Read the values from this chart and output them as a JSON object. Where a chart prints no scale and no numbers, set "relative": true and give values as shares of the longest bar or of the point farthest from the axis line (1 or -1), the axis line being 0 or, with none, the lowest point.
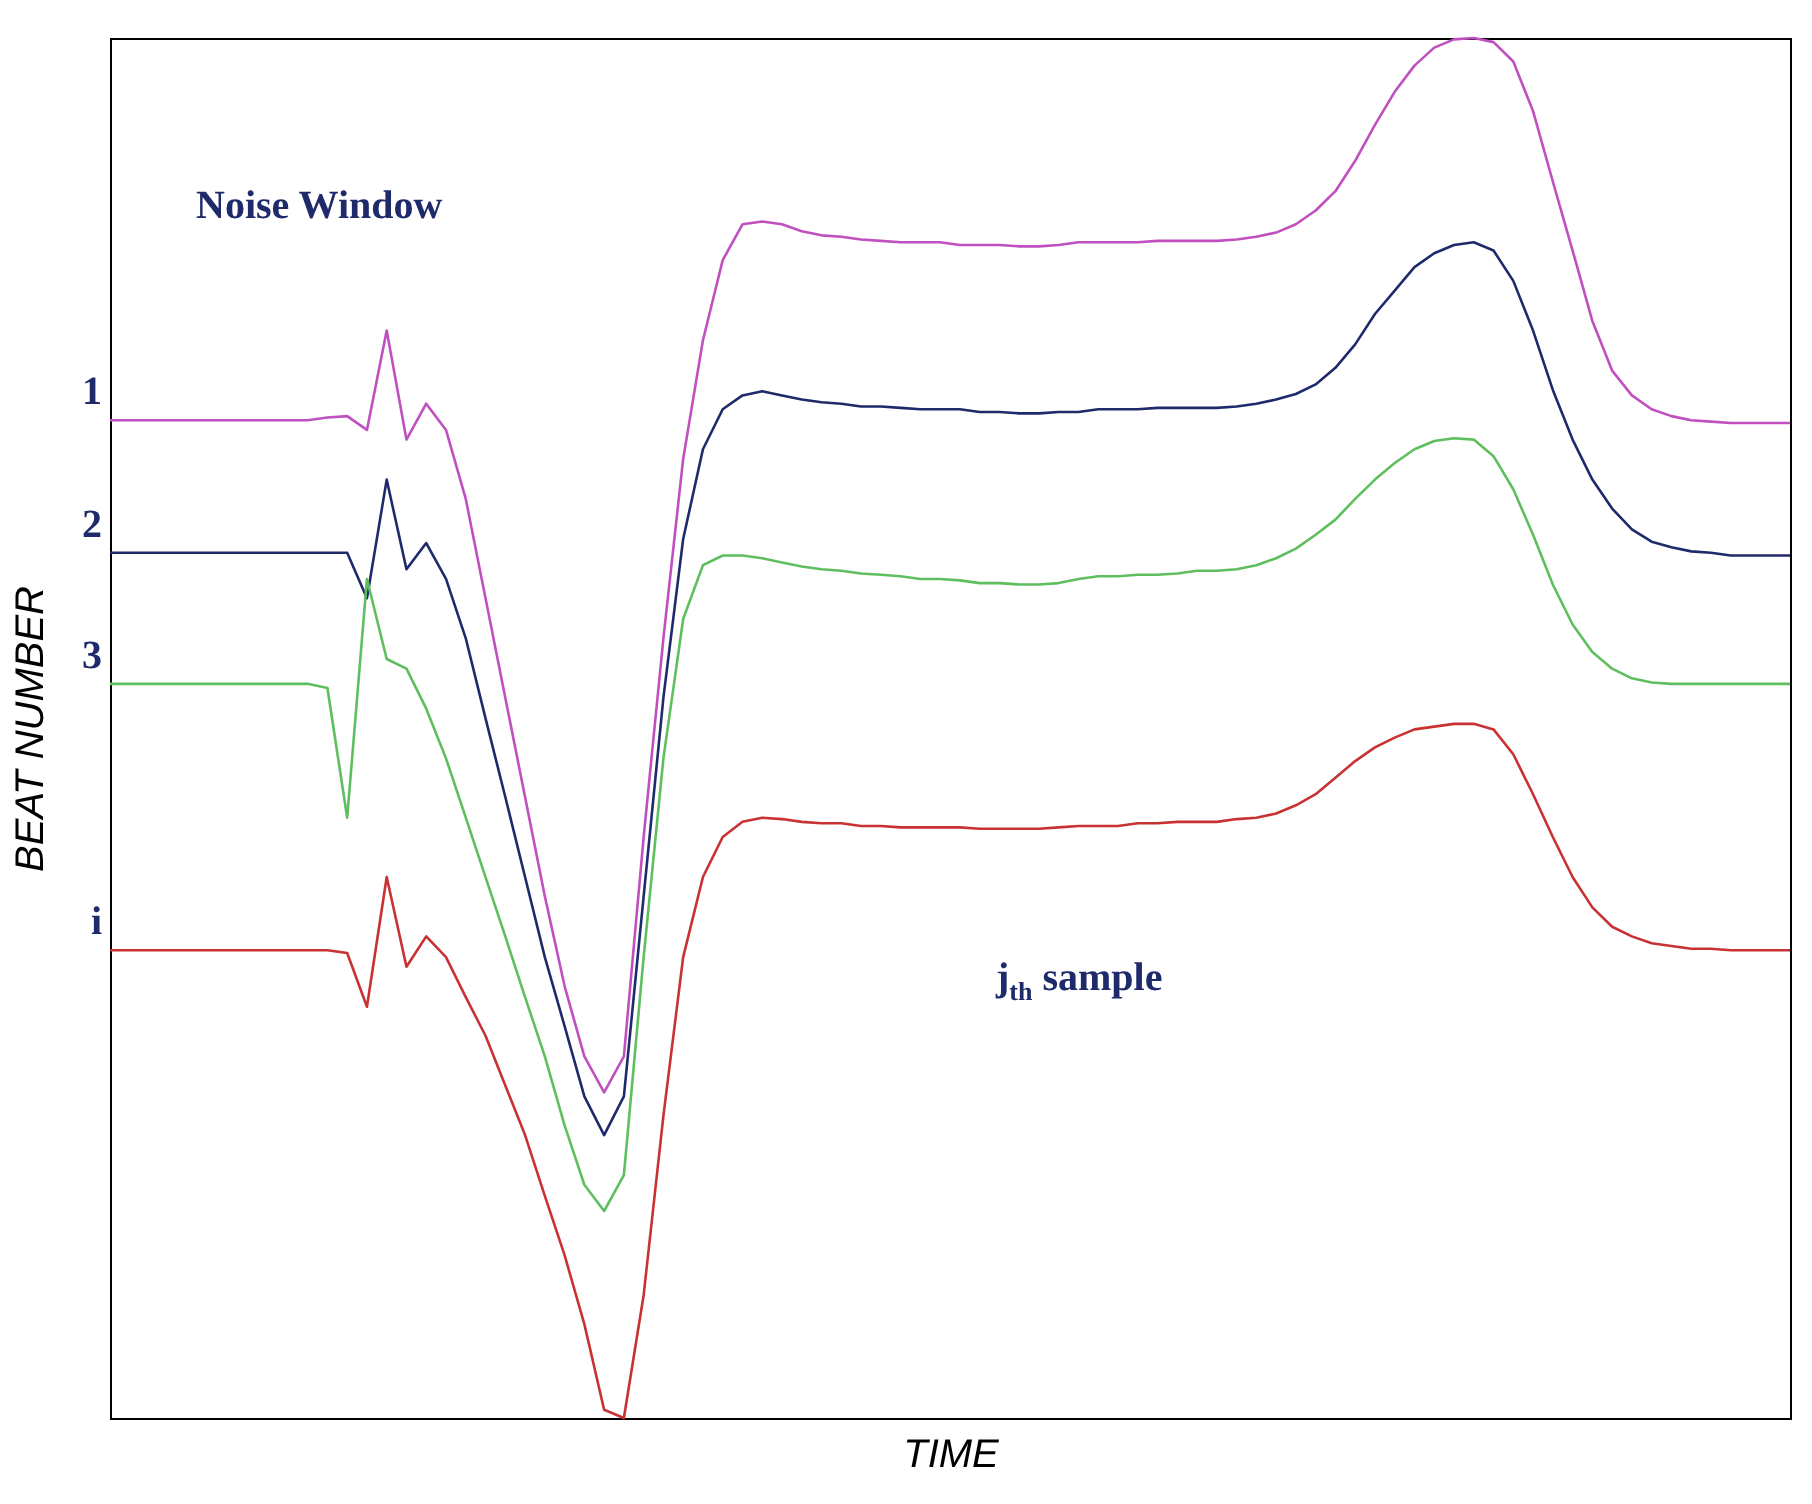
{
  "chart_data": {
    "type": "line",
    "relative": true,
    "xlabel": "TIME",
    "ylabel": "BEAT NUMBER",
    "legend": false,
    "annotations": [
      "Noise Window",
      "j$_{th}$ sample"
    ],
    "categories": [
      null,
      null,
      null,
      null,
      null,
      null,
      null,
      null,
      null,
      null,
      null,
      null,
      null,
      null,
      null,
      null,
      null,
      null,
      null,
      null,
      null,
      null,
      null,
      null,
      null,
      null,
      null,
      null,
      null,
      null,
      null,
      null,
      null,
      null,
      null,
      null,
      null,
      null,
      null,
      null,
      null,
      null,
      null,
      null,
      null,
      null,
      null,
      null,
      null,
      null,
      null,
      null,
      null,
      null,
      null,
      null,
      null,
      null,
      null,
      null,
      null,
      null,
      null,
      null,
      null,
      null,
      null,
      null,
      null,
      null,
      null,
      null,
      null,
      null,
      null,
      null,
      null,
      null,
      null,
      null,
      null,
      null,
      null,
      null,
      null,
      null
    ],
    "series": [
      {
        "name": "1",
        "color": "#c050c0",
        "values": [
          0.723,
          0.723,
          0.723,
          0.723,
          0.723,
          0.723,
          0.723,
          0.723,
          0.723,
          0.723,
          0.723,
          0.725,
          0.726,
          0.716,
          0.788,
          0.709,
          0.735,
          0.716,
          0.666,
          0.594,
          0.522,
          0.45,
          0.378,
          0.313,
          0.262,
          0.236,
          0.262,
          0.421,
          0.565,
          0.695,
          0.781,
          0.839,
          0.865,
          0.867,
          0.865,
          0.86,
          0.857,
          0.856,
          0.854,
          0.853,
          0.852,
          0.852,
          0.852,
          0.85,
          0.85,
          0.85,
          0.849,
          0.849,
          0.85,
          0.852,
          0.852,
          0.852,
          0.852,
          0.853,
          0.853,
          0.853,
          0.853,
          0.854,
          0.856,
          0.859,
          0.865,
          0.875,
          0.889,
          0.911,
          0.937,
          0.961,
          0.98,
          0.993,
          0.999,
          1.0,
          0.997,
          0.983,
          0.947,
          0.896,
          0.846,
          0.795,
          0.759,
          0.741,
          0.731,
          0.726,
          0.723,
          0.722,
          0.721,
          0.721,
          0.721,
          0.721
        ]
      },
      {
        "name": "2",
        "color": "#1f2a6b",
        "values": [
          0.627,
          0.627,
          0.627,
          0.627,
          0.627,
          0.627,
          0.627,
          0.627,
          0.627,
          0.627,
          0.627,
          0.627,
          0.627,
          0.594,
          0.68,
          0.615,
          0.634,
          0.608,
          0.565,
          0.507,
          0.45,
          0.392,
          0.334,
          0.284,
          0.233,
          0.205,
          0.233,
          0.378,
          0.522,
          0.637,
          0.702,
          0.731,
          0.741,
          0.744,
          0.741,
          0.738,
          0.736,
          0.735,
          0.733,
          0.733,
          0.732,
          0.731,
          0.731,
          0.731,
          0.729,
          0.729,
          0.728,
          0.728,
          0.729,
          0.729,
          0.731,
          0.731,
          0.731,
          0.732,
          0.732,
          0.732,
          0.732,
          0.733,
          0.735,
          0.738,
          0.742,
          0.749,
          0.761,
          0.778,
          0.8,
          0.817,
          0.834,
          0.844,
          0.85,
          0.852,
          0.846,
          0.824,
          0.788,
          0.745,
          0.709,
          0.68,
          0.659,
          0.644,
          0.635,
          0.631,
          0.628,
          0.627,
          0.625,
          0.625,
          0.625,
          0.625
        ]
      },
      {
        "name": "3",
        "color": "#5fbf5f",
        "values": [
          0.532,
          0.532,
          0.532,
          0.532,
          0.532,
          0.532,
          0.532,
          0.532,
          0.532,
          0.532,
          0.532,
          0.529,
          0.435,
          0.608,
          0.55,
          0.543,
          0.514,
          0.478,
          0.435,
          0.392,
          0.349,
          0.305,
          0.262,
          0.212,
          0.169,
          0.15,
          0.176,
          0.334,
          0.478,
          0.579,
          0.618,
          0.625,
          0.625,
          0.623,
          0.62,
          0.617,
          0.615,
          0.614,
          0.612,
          0.611,
          0.61,
          0.608,
          0.608,
          0.607,
          0.605,
          0.605,
          0.604,
          0.604,
          0.605,
          0.608,
          0.61,
          0.61,
          0.611,
          0.611,
          0.612,
          0.614,
          0.614,
          0.615,
          0.618,
          0.623,
          0.63,
          0.64,
          0.651,
          0.666,
          0.68,
          0.692,
          0.702,
          0.708,
          0.71,
          0.709,
          0.697,
          0.673,
          0.64,
          0.604,
          0.575,
          0.555,
          0.543,
          0.536,
          0.533,
          0.532,
          0.532,
          0.532,
          0.532,
          0.532,
          0.532,
          0.532
        ]
      },
      {
        "name": "i",
        "color": "#c83232",
        "values": [
          0.339,
          0.339,
          0.339,
          0.339,
          0.339,
          0.339,
          0.339,
          0.339,
          0.339,
          0.339,
          0.339,
          0.339,
          0.337,
          0.298,
          0.392,
          0.327,
          0.349,
          0.334,
          0.305,
          0.277,
          0.241,
          0.205,
          0.161,
          0.118,
          0.068,
          0.006,
          0,
          0.089,
          0.219,
          0.334,
          0.392,
          0.421,
          0.432,
          0.435,
          0.434,
          0.432,
          0.431,
          0.431,
          0.429,
          0.429,
          0.428,
          0.428,
          0.428,
          0.428,
          0.427,
          0.427,
          0.427,
          0.427,
          0.428,
          0.429,
          0.429,
          0.429,
          0.431,
          0.431,
          0.432,
          0.432,
          0.432,
          0.434,
          0.435,
          0.438,
          0.444,
          0.452,
          0.464,
          0.476,
          0.486,
          0.493,
          0.499,
          0.501,
          0.503,
          0.503,
          0.499,
          0.481,
          0.452,
          0.421,
          0.392,
          0.37,
          0.356,
          0.349,
          0.344,
          0.342,
          0.34,
          0.34,
          0.339,
          0.339,
          0.339,
          0.339
        ]
      }
    ]
  }
}
